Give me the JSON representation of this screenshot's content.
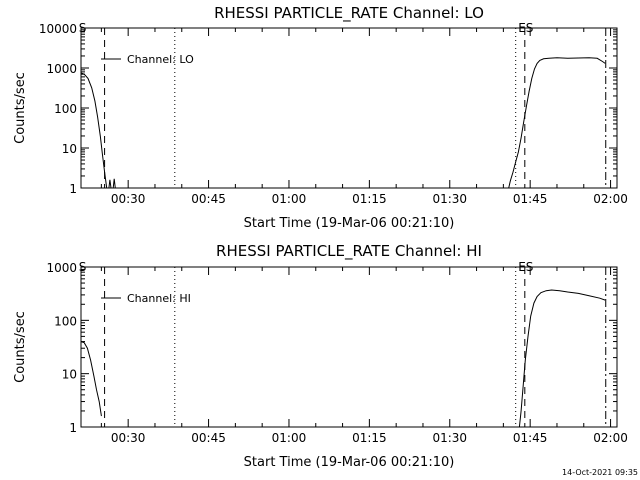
{
  "footer": {
    "timestamp": "14-Oct-2021 09:35"
  },
  "chart_data": [
    {
      "type": "line",
      "title": "RHESSI PARTICLE_RATE Channel: LO",
      "xlabel": "Start Time (19-Mar-06 00:21:10)",
      "ylabel": "Counts/sec",
      "y_scale": "log",
      "xlim_minutes": [
        21.2,
        121.2
      ],
      "ylim": [
        1,
        10000
      ],
      "x_ticks": [
        {
          "label": "00:30",
          "minute": 30
        },
        {
          "label": "00:45",
          "minute": 45
        },
        {
          "label": "01:00",
          "minute": 60
        },
        {
          "label": "01:15",
          "minute": 75
        },
        {
          "label": "01:30",
          "minute": 90
        },
        {
          "label": "01:45",
          "minute": 105
        },
        {
          "label": "02:00",
          "minute": 120
        }
      ],
      "y_ticks": [
        {
          "label": "1",
          "value": 1
        },
        {
          "label": "10",
          "value": 10
        },
        {
          "label": "100",
          "value": 100
        },
        {
          "label": "1000",
          "value": 1000
        },
        {
          "label": "10000",
          "value": 10000
        }
      ],
      "legend": {
        "label": "Channel: LO",
        "placement": "top-left"
      },
      "markers": [
        {
          "label": "S",
          "minute": 21.3,
          "style": "none"
        },
        {
          "label": "",
          "minute": 25.6,
          "style": "dashed"
        },
        {
          "label": "",
          "minute": 38.7,
          "style": "dotted"
        },
        {
          "label": "",
          "minute": 102.3,
          "style": "dotted"
        },
        {
          "label": "ES",
          "minute": 104.0,
          "style": "dashed"
        },
        {
          "label": "",
          "minute": 119.1,
          "style": "dashdot"
        }
      ],
      "series_segments": [
        [
          [
            21.2,
            750
          ],
          [
            21.8,
            700
          ],
          [
            22.5,
            550
          ],
          [
            23.2,
            320
          ],
          [
            23.8,
            150
          ],
          [
            24.3,
            60
          ],
          [
            24.8,
            20
          ],
          [
            25.2,
            7
          ],
          [
            25.6,
            2.5
          ],
          [
            26.0,
            1
          ]
        ],
        [
          [
            26.4,
            1
          ],
          [
            26.6,
            1.6
          ],
          [
            26.8,
            1
          ]
        ],
        [
          [
            27.2,
            1
          ],
          [
            27.4,
            1.7
          ],
          [
            27.6,
            1
          ]
        ],
        [
          [
            101.0,
            1
          ],
          [
            101.3,
            1.5
          ],
          [
            101.8,
            2.5
          ],
          [
            102.3,
            4.5
          ],
          [
            102.8,
            8
          ],
          [
            103.3,
            18
          ],
          [
            103.8,
            45
          ],
          [
            104.3,
            110
          ],
          [
            104.8,
            260
          ],
          [
            105.3,
            550
          ],
          [
            105.8,
            950
          ],
          [
            106.3,
            1300
          ],
          [
            106.8,
            1550
          ],
          [
            107.5,
            1700
          ],
          [
            108.5,
            1750
          ],
          [
            110,
            1800
          ],
          [
            112,
            1750
          ],
          [
            114,
            1780
          ],
          [
            116,
            1800
          ],
          [
            117.5,
            1750
          ],
          [
            118.5,
            1450
          ],
          [
            119.0,
            1300
          ]
        ]
      ]
    },
    {
      "type": "line",
      "title": "RHESSI PARTICLE_RATE Channel: HI",
      "xlabel": "Start Time (19-Mar-06 00:21:10)",
      "ylabel": "Counts/sec",
      "y_scale": "log",
      "xlim_minutes": [
        21.2,
        121.2
      ],
      "ylim": [
        1,
        1000
      ],
      "x_ticks": [
        {
          "label": "00:30",
          "minute": 30
        },
        {
          "label": "00:45",
          "minute": 45
        },
        {
          "label": "01:00",
          "minute": 60
        },
        {
          "label": "01:15",
          "minute": 75
        },
        {
          "label": "01:30",
          "minute": 90
        },
        {
          "label": "01:45",
          "minute": 105
        },
        {
          "label": "02:00",
          "minute": 120
        }
      ],
      "y_ticks": [
        {
          "label": "1",
          "value": 1
        },
        {
          "label": "10",
          "value": 10
        },
        {
          "label": "100",
          "value": 100
        },
        {
          "label": "1000",
          "value": 1000
        }
      ],
      "legend": {
        "label": "Channel: HI",
        "placement": "top-left"
      },
      "markers": [
        {
          "label": "S",
          "minute": 21.3,
          "style": "none"
        },
        {
          "label": "",
          "minute": 25.6,
          "style": "dashed"
        },
        {
          "label": "",
          "minute": 38.7,
          "style": "dotted"
        },
        {
          "label": "",
          "minute": 102.3,
          "style": "dotted"
        },
        {
          "label": "ES",
          "minute": 104.0,
          "style": "dashed"
        },
        {
          "label": "",
          "minute": 119.1,
          "style": "dashdot"
        }
      ],
      "series_segments": [
        [
          [
            21.2,
            40
          ],
          [
            21.8,
            38
          ],
          [
            22.4,
            30
          ],
          [
            23.0,
            18
          ],
          [
            23.6,
            9
          ],
          [
            24.1,
            5
          ],
          [
            24.6,
            3
          ],
          [
            25.0,
            1.6
          ]
        ],
        [
          [
            103.0,
            1
          ],
          [
            103.3,
            2
          ],
          [
            103.7,
            6
          ],
          [
            104.1,
            18
          ],
          [
            104.6,
            50
          ],
          [
            105.1,
            120
          ],
          [
            105.7,
            210
          ],
          [
            106.3,
            280
          ],
          [
            107.0,
            330
          ],
          [
            108.0,
            360
          ],
          [
            109.0,
            370
          ],
          [
            110.5,
            360
          ],
          [
            112,
            340
          ],
          [
            114,
            320
          ],
          [
            116,
            290
          ],
          [
            118,
            260
          ],
          [
            119.0,
            240
          ]
        ]
      ]
    }
  ]
}
